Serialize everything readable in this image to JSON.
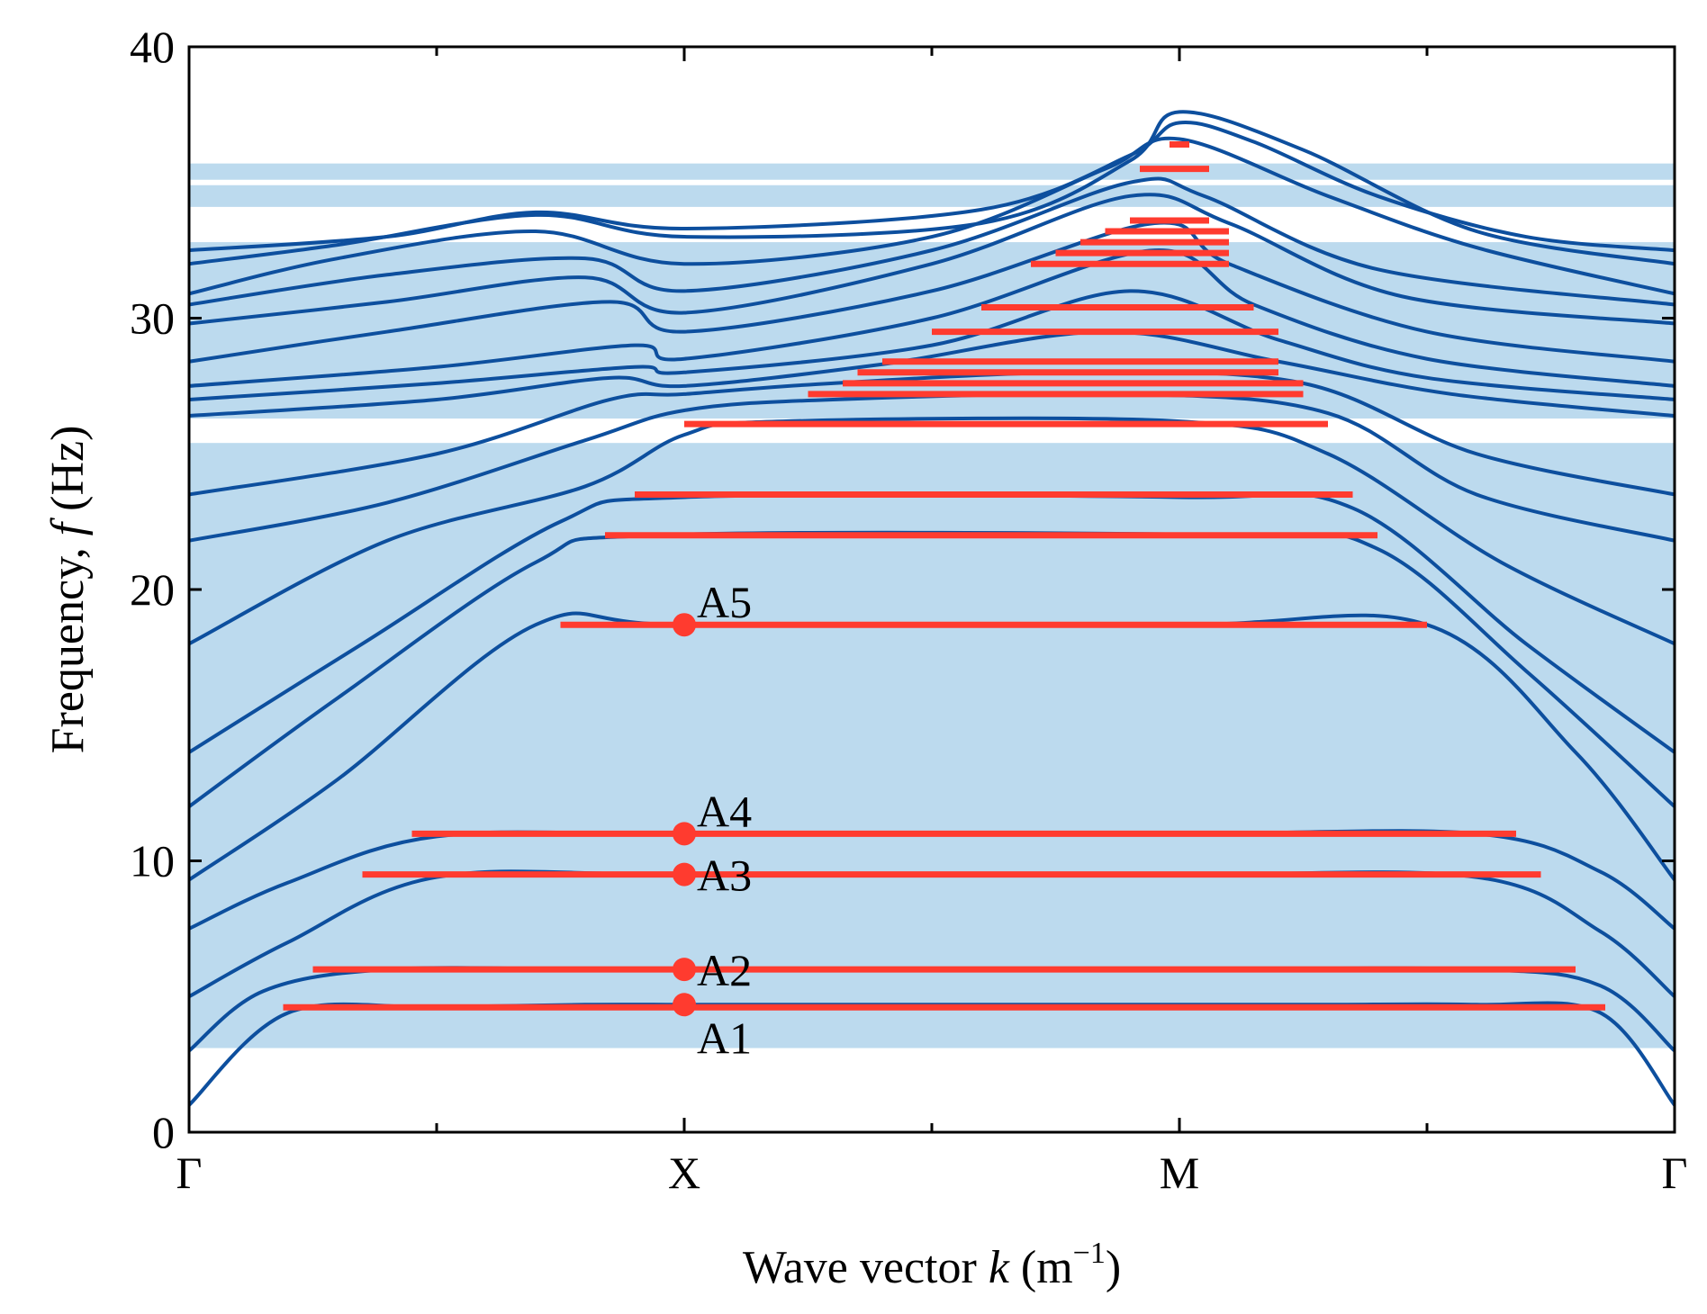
{
  "chart_data": {
    "type": "line",
    "title": "",
    "xlabel": {
      "prefix": "Wave vector ",
      "var": "k",
      "unit_open": " (m",
      "exp": "−1",
      "unit_close": ")"
    },
    "ylabel": {
      "prefix": "Frequency,  ",
      "var": "f",
      "unit": " (Hz)"
    },
    "x_ticks": [
      "Γ",
      "X",
      "M",
      "Γ"
    ],
    "x_tick_positions": [
      0,
      1,
      2,
      3
    ],
    "xlim": [
      0,
      3
    ],
    "ylim": [
      0,
      40
    ],
    "y_ticks": [
      0,
      10,
      20,
      30,
      40
    ],
    "grid": false,
    "colors": {
      "band_line": "#0d4f9e",
      "shade": "#bcdaee",
      "flat_band": "#ff3b2f",
      "axis": "#000000"
    },
    "shaded_regions": [
      {
        "y0": 35.1,
        "y1": 35.7
      },
      {
        "y0": 34.1,
        "y1": 34.9
      },
      {
        "y0": 3.1,
        "y1": 32.8
      },
      {
        "y0": 25.4,
        "y1": 26.3,
        "blank": true
      }
    ],
    "dispersive_band_series": [
      {
        "name": "band",
        "k": [
          0,
          0.2,
          0.5,
          0.8,
          1,
          1.2,
          1.6,
          2,
          2.3,
          2.6,
          2.85,
          3
        ],
        "f": [
          1.0,
          4.4,
          4.6,
          4.7,
          4.7,
          4.7,
          4.7,
          4.7,
          4.7,
          4.7,
          4.4,
          1.0
        ]
      },
      {
        "name": "band",
        "k": [
          0,
          0.15,
          0.4,
          0.8,
          1,
          1.3,
          2,
          2.6,
          2.85,
          3
        ],
        "f": [
          3.0,
          5.2,
          6.0,
          6.0,
          6.0,
          6.0,
          6.0,
          6.0,
          5.4,
          3.0
        ]
      },
      {
        "name": "band",
        "k": [
          0,
          0.2,
          0.5,
          1,
          2,
          2.6,
          2.85,
          3
        ],
        "f": [
          5.0,
          7.0,
          9.4,
          9.5,
          9.5,
          9.4,
          7.4,
          5.0
        ]
      },
      {
        "name": "band",
        "k": [
          0,
          0.2,
          0.5,
          1,
          2,
          2.6,
          2.85,
          3
        ],
        "f": [
          7.5,
          9.2,
          10.9,
          11.0,
          11.0,
          11.0,
          9.6,
          7.5
        ]
      },
      {
        "name": "band",
        "k": [
          0,
          0.3,
          0.7,
          1,
          2,
          2.5,
          2.8,
          3
        ],
        "f": [
          9.3,
          13.0,
          18.7,
          18.7,
          18.7,
          18.7,
          14.0,
          9.3
        ]
      },
      {
        "name": "band",
        "k": [
          0,
          0.3,
          0.7,
          0.95,
          2.1,
          2.4,
          2.7,
          3
        ],
        "f": [
          12.0,
          16.0,
          21.0,
          22.0,
          22.0,
          21.5,
          17.0,
          12.0
        ]
      },
      {
        "name": "band",
        "k": [
          0,
          0.35,
          0.75,
          1,
          2,
          2.35,
          2.7,
          3
        ],
        "f": [
          14.0,
          18.0,
          22.5,
          23.4,
          23.4,
          23.0,
          18.0,
          14.0
        ]
      },
      {
        "name": "band",
        "k": [
          0,
          0.4,
          0.8,
          1,
          1.2,
          2,
          2.3,
          2.65,
          3
        ],
        "f": [
          18.0,
          21.8,
          23.8,
          25.7,
          26.2,
          26.2,
          25.0,
          21.0,
          18.0
        ]
      },
      {
        "name": "band",
        "k": [
          0,
          0.4,
          0.8,
          1,
          1.3,
          1.9,
          2.3,
          2.6,
          3
        ],
        "f": [
          21.8,
          23.2,
          25.5,
          26.6,
          27.0,
          27.2,
          26.5,
          23.5,
          21.8
        ]
      },
      {
        "name": "band",
        "k": [
          0,
          0.5,
          0.85,
          1,
          1.3,
          1.8,
          2.25,
          2.6,
          3
        ],
        "f": [
          23.5,
          25.0,
          27.0,
          27.2,
          27.6,
          28.0,
          27.6,
          25.0,
          23.5
        ]
      },
      {
        "name": "band",
        "k": [
          0,
          0.5,
          0.85,
          1,
          1.4,
          1.85,
          2.2,
          2.55,
          3
        ],
        "f": [
          26.4,
          27.0,
          27.8,
          27.5,
          28.3,
          29.5,
          28.4,
          27.2,
          26.4
        ]
      },
      {
        "name": "band",
        "k": [
          0,
          0.5,
          0.9,
          1,
          1.5,
          1.9,
          2.2,
          2.5,
          3
        ],
        "f": [
          27.0,
          27.6,
          28.2,
          28.0,
          29.0,
          31.0,
          29.2,
          27.8,
          27.0
        ]
      },
      {
        "name": "band",
        "k": [
          0,
          0.5,
          0.9,
          1,
          1.5,
          1.95,
          2.15,
          2.5,
          3
        ],
        "f": [
          27.5,
          28.2,
          29.0,
          28.5,
          30.0,
          32.5,
          30.5,
          28.5,
          27.5
        ]
      },
      {
        "name": "band",
        "k": [
          0,
          0.4,
          0.85,
          1,
          1.5,
          1.95,
          2.1,
          2.5,
          3
        ],
        "f": [
          28.4,
          29.5,
          30.6,
          29.5,
          31.0,
          33.5,
          32.0,
          29.5,
          28.4
        ]
      },
      {
        "name": "band",
        "k": [
          0,
          0.4,
          0.8,
          1,
          1.5,
          1.9,
          2.1,
          2.45,
          3
        ],
        "f": [
          29.8,
          30.6,
          31.5,
          30.2,
          32.0,
          34.5,
          33.5,
          30.8,
          29.8
        ]
      },
      {
        "name": "band",
        "k": [
          0,
          0.4,
          0.8,
          1,
          1.5,
          1.9,
          2.05,
          2.4,
          3
        ],
        "f": [
          30.5,
          31.6,
          32.2,
          31.0,
          32.5,
          35.0,
          34.5,
          31.8,
          30.5
        ]
      },
      {
        "name": "band",
        "k": [
          0,
          0.3,
          0.7,
          1,
          1.5,
          1.85,
          2,
          2.3,
          2.6,
          3
        ],
        "f": [
          30.9,
          32.2,
          33.2,
          32.0,
          33.0,
          35.5,
          36.6,
          34.5,
          32.6,
          30.9
        ]
      },
      {
        "name": "band",
        "k": [
          0,
          0.3,
          0.7,
          1,
          1.6,
          1.9,
          2,
          2.25,
          2.6,
          3
        ],
        "f": [
          32.0,
          32.7,
          33.8,
          33.0,
          33.5,
          35.8,
          37.6,
          36.2,
          33.2,
          32.0
        ]
      },
      {
        "name": "band",
        "k": [
          0,
          0.4,
          0.7,
          1,
          1.6,
          1.9,
          2,
          2.15,
          2.4,
          2.7,
          3
        ],
        "f": [
          32.5,
          33.0,
          33.9,
          33.3,
          34.0,
          36.0,
          37.2,
          36.5,
          34.5,
          33.0,
          32.5
        ]
      }
    ],
    "flat_bands": [
      {
        "f": 4.6,
        "k0": 0.19,
        "k1": 2.86
      },
      {
        "f": 6.0,
        "k0": 0.25,
        "k1": 2.8
      },
      {
        "f": 9.5,
        "k0": 0.35,
        "k1": 2.73
      },
      {
        "f": 11.0,
        "k0": 0.45,
        "k1": 2.68
      },
      {
        "f": 18.7,
        "k0": 0.75,
        "k1": 2.5
      },
      {
        "f": 22.0,
        "k0": 0.84,
        "k1": 2.4
      },
      {
        "f": 23.5,
        "k0": 0.9,
        "k1": 2.35
      },
      {
        "f": 26.1,
        "k0": 1.0,
        "k1": 2.3
      },
      {
        "f": 27.2,
        "k0": 1.25,
        "k1": 2.25
      },
      {
        "f": 27.6,
        "k0": 1.32,
        "k1": 2.25
      },
      {
        "f": 28.0,
        "k0": 1.35,
        "k1": 2.2
      },
      {
        "f": 28.4,
        "k0": 1.4,
        "k1": 2.2
      },
      {
        "f": 29.5,
        "k0": 1.5,
        "k1": 2.2
      },
      {
        "f": 30.4,
        "k0": 1.6,
        "k1": 2.15
      },
      {
        "f": 32.0,
        "k0": 1.7,
        "k1": 2.1
      },
      {
        "f": 32.4,
        "k0": 1.75,
        "k1": 2.1
      },
      {
        "f": 32.8,
        "k0": 1.8,
        "k1": 2.1
      },
      {
        "f": 33.2,
        "k0": 1.85,
        "k1": 2.1
      },
      {
        "f": 33.6,
        "k0": 1.9,
        "k1": 2.06
      },
      {
        "f": 35.5,
        "k0": 1.92,
        "k1": 2.06
      },
      {
        "f": 36.4,
        "k0": 1.98,
        "k1": 2.02
      }
    ],
    "annotations": [
      {
        "label": "A1",
        "k": 1,
        "f": 4.7,
        "pos": "below-right"
      },
      {
        "label": "A2",
        "k": 1,
        "f": 6.0,
        "pos": "right"
      },
      {
        "label": "A3",
        "k": 1,
        "f": 9.5,
        "pos": "right"
      },
      {
        "label": "A4",
        "k": 1,
        "f": 11.0,
        "pos": "above-right"
      },
      {
        "label": "A5",
        "k": 1,
        "f": 18.7,
        "pos": "above-right"
      }
    ]
  }
}
